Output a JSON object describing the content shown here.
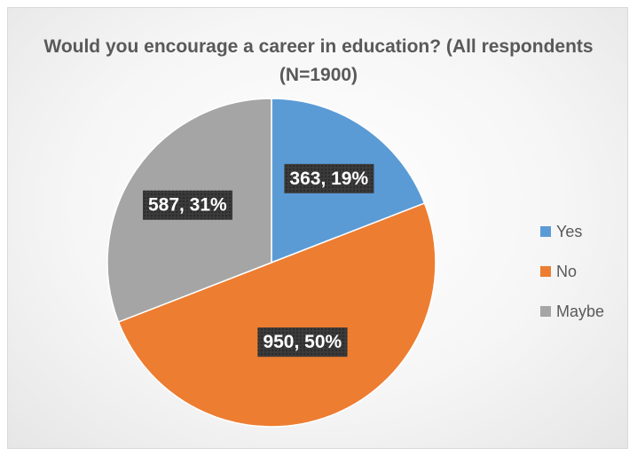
{
  "chart_data": {
    "type": "pie",
    "title": "Would you encourage a career in education? (All respondents (N=1900)",
    "categories": [
      "Yes",
      "No",
      "Maybe"
    ],
    "values": [
      363,
      950,
      587
    ],
    "percentages": [
      19,
      50,
      31
    ],
    "data_labels": [
      "363, 19%",
      "950, 50%",
      "587, 31%"
    ],
    "colors": [
      "#5b9bd5",
      "#ed7d31",
      "#a5a5a5"
    ],
    "legend_position": "right",
    "start_angle_deg": 0,
    "direction": "clockwise"
  }
}
